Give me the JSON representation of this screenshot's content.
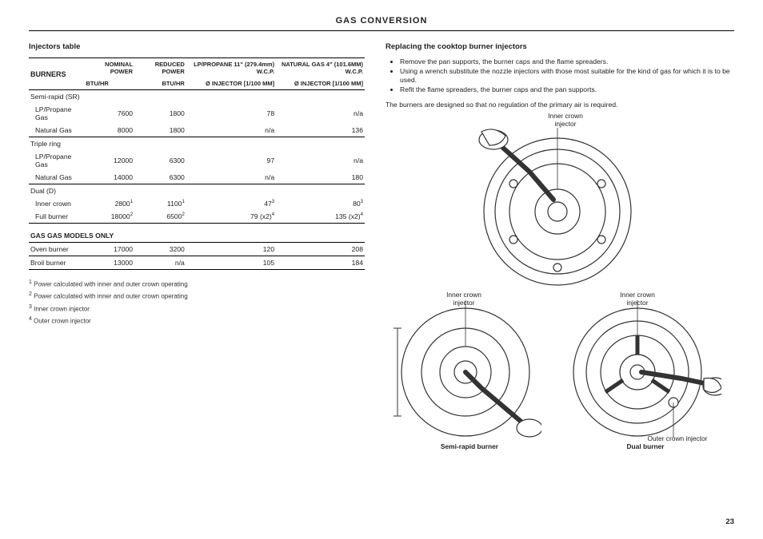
{
  "page_title": "GAS CONVERSION",
  "page_number": "23",
  "left": {
    "injectors_heading": "Injectors table",
    "table": {
      "col_header_row1": [
        "BURNERS",
        "NOMINAL POWER",
        "REDUCED POWER",
        "LP/PROPANE 11\" (279.4mm) W.C.P.",
        "NATURAL GAS 4\" (101.6MM) W.C.P."
      ],
      "col_header_row2": [
        "",
        "BTU/HR",
        "BTU/HR",
        "Ø INJECTOR [1/100 MM]",
        "Ø INJECTOR [1/100 MM]"
      ],
      "groups": [
        {
          "name": "Semi-rapid (SR)",
          "rows": [
            {
              "label": "LP/Propane Gas",
              "c1": "7600",
              "c2": "1800",
              "c3": "78",
              "c4": "n/a"
            },
            {
              "label": "Natural Gas",
              "c1": "8000",
              "c2": "1800",
              "c3": "n/a",
              "c4": "136"
            }
          ]
        },
        {
          "name": "Triple ring",
          "rows": [
            {
              "label": "LP/Propane Gas",
              "c1": "12000",
              "c2": "6300",
              "c3": "97",
              "c4": "n/a"
            },
            {
              "label": "Natural Gas",
              "c1": "14000",
              "c2": "6300",
              "c3": "n/a",
              "c4": "180"
            }
          ]
        },
        {
          "name": "Dual (D)",
          "rows": [
            {
              "label": "Inner crown",
              "c1": "2800",
              "c1s": "1",
              "c2": "1100",
              "c2s": "1",
              "c3": "47",
              "c3s": "3",
              "c4": "80",
              "c4s": "3"
            },
            {
              "label": "Full burner",
              "c1": "18000",
              "c1s": "2",
              "c2": "6500",
              "c2s": "2",
              "c3": "79 (x2)",
              "c3s": "4",
              "c4": "135 (x2)",
              "c4s": "4"
            }
          ]
        }
      ],
      "gas_only_heading": "GAS GAS MODELS ONLY",
      "gas_only_rows": [
        {
          "label": "Oven burner",
          "c1": "17000",
          "c2": "3200",
          "c3": "120",
          "c4": "208"
        },
        {
          "label": "Broil burner",
          "c1": "13000",
          "c2": "n/a",
          "c3": "105",
          "c4": "184"
        }
      ]
    },
    "footnotes": [
      {
        "n": "1",
        "t": "Power calculated with inner and outer crown operating"
      },
      {
        "n": "2",
        "t": "Power calculated with inner and outer crown operating"
      },
      {
        "n": "3",
        "t": "Inner crown injector"
      },
      {
        "n": "4",
        "t": "Outer crown injector"
      }
    ]
  },
  "right": {
    "heading": "Replacing the cooktop burner injectors",
    "bullets": [
      "Remove the pan supports, the burner caps and the flame spreaders.",
      "Using a wrench substitute the nozzle injectors with those most suitable for the kind of gas for which it is to be used.",
      "Refit the flame spreaders, the burner caps and the pan supports."
    ],
    "para": "The burners are designed so that no regulation of the primary air is required.",
    "labels": {
      "inner_top": "Inner crown\ninjector",
      "inner_bl": "Inner crown\ninjector",
      "inner_br": "Inner crown\ninjector",
      "outer_br": "Outer crown injector",
      "cap_left": "Semi-rapid burner",
      "cap_right": "Dual burner"
    },
    "diagram_style": {
      "stroke": "#333333",
      "fill": "#ffffff",
      "stroke_width": 1.2
    }
  }
}
